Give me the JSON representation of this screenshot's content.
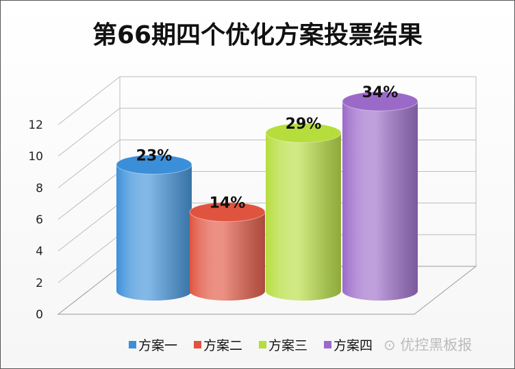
{
  "chart_data": {
    "type": "bar",
    "style": "3d-cylinder",
    "title": "第66期四个优化方案投票结果",
    "categories": [
      "方案一",
      "方案二",
      "方案三",
      "方案四"
    ],
    "values": [
      8,
      5,
      10,
      12
    ],
    "data_labels": [
      "23%",
      "14%",
      "29%",
      "34%"
    ],
    "ylim": [
      0,
      12
    ],
    "yticks": [
      "0",
      "2",
      "4",
      "6",
      "8",
      "10",
      "12"
    ],
    "grid": true,
    "legend_position": "bottom",
    "colors": [
      "#3b8fd9",
      "#e0533f",
      "#b5dd3c",
      "#9b6ac9"
    ]
  },
  "watermark": "优控黑板报"
}
